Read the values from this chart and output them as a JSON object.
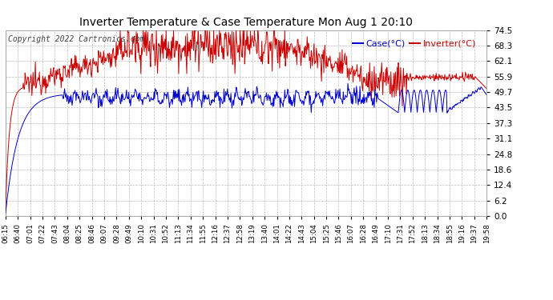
{
  "title": "Inverter Temperature & Case Temperature Mon Aug 1 20:10",
  "copyright": "Copyright 2022 Cartronics.com",
  "legend_case": "Case(°C)",
  "legend_inverter": "Inverter(°C)",
  "y_ticks": [
    0.0,
    6.2,
    12.4,
    18.6,
    24.8,
    31.1,
    37.3,
    43.5,
    49.7,
    55.9,
    62.1,
    68.3,
    74.5
  ],
  "ylim": [
    0.0,
    74.5
  ],
  "x_labels": [
    "06:15",
    "06:40",
    "07:01",
    "07:22",
    "07:43",
    "08:04",
    "08:25",
    "08:46",
    "09:07",
    "09:28",
    "09:49",
    "10:10",
    "10:31",
    "10:52",
    "11:13",
    "11:34",
    "11:55",
    "12:16",
    "12:37",
    "12:58",
    "13:19",
    "13:40",
    "14:01",
    "14:22",
    "14:43",
    "15:04",
    "15:25",
    "15:46",
    "16:07",
    "16:28",
    "16:49",
    "17:10",
    "17:31",
    "17:52",
    "18:13",
    "18:34",
    "18:55",
    "19:16",
    "19:37",
    "19:58"
  ],
  "bg_color": "#ffffff",
  "grid_color": "#aaaaaa",
  "case_color": "#0000cc",
  "inverter_color": "#cc0000",
  "title_color": "#000000",
  "copyright_color": "#444444",
  "figsize": [
    6.9,
    3.75
  ],
  "dpi": 100
}
